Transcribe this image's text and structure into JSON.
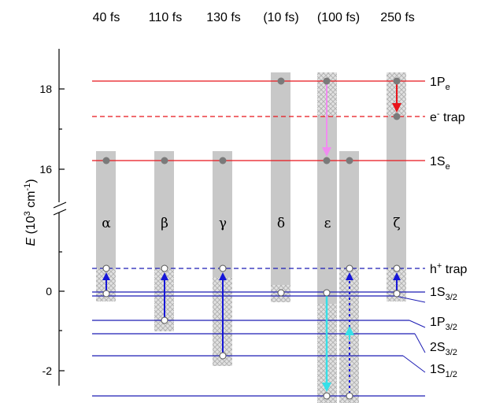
{
  "timings": [
    "40 fs",
    "110 fs",
    "130 fs",
    "(10 fs)",
    "(100 fs)",
    "250 fs"
  ],
  "greek": [
    "α",
    "β",
    "γ",
    "δ",
    "ε",
    "ζ"
  ],
  "y_axis": {
    "label_italic": "E",
    "label_rest": " (10",
    "label_exp": "3",
    "label_unit": " cm",
    "label_unit_exp": "-1",
    "label_close": ")",
    "ticks": [
      "18",
      "16",
      "0",
      "-2"
    ]
  },
  "levels": {
    "one_p_e": {
      "main": "1P",
      "sub": "e"
    },
    "e_trap": {
      "main": "e",
      "sup": "-",
      "rest": " trap"
    },
    "one_s_e": {
      "main": "1S",
      "sub": "e"
    },
    "h_trap": {
      "main": "h",
      "sup": "+",
      "rest": " trap"
    },
    "one_s_32": {
      "main": "1S",
      "sub": "3/2"
    },
    "one_p_32": {
      "main": "1P",
      "sub": "3/2"
    },
    "two_s_32": {
      "main": "2S",
      "sub": "3/2"
    },
    "one_s_12": {
      "main": "1S",
      "sub": "1/2"
    }
  },
  "colors": {
    "electron_level": "#e8141b",
    "hole_level": "#1c1cb4",
    "transition_blue": "#1616d8",
    "transition_red": "#e8141b",
    "transition_pink": "#f08cf0",
    "transition_cyan": "#36e0e8",
    "bar_gray": "#c8c8c8",
    "marker_gray": "#7a7a7a"
  }
}
